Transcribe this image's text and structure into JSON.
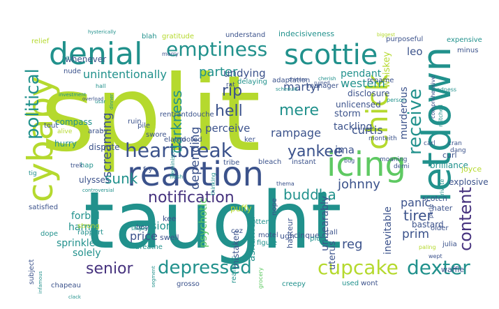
{
  "palette": {
    "lime": "#b5d92e",
    "green": "#5ec962",
    "teal": "#21918c",
    "cyan": "#2a9d8f",
    "blue": "#3b528b",
    "navy": "#46327e",
    "purple": "#440154"
  },
  "words": [
    {
      "text": "split",
      "color": "lime"
    },
    {
      "text": "taught",
      "color": "teal"
    },
    {
      "text": "reaction",
      "color": "blue"
    },
    {
      "text": "letdown",
      "color": "teal"
    },
    {
      "text": "denial",
      "color": "teal"
    },
    {
      "text": "scottie",
      "color": "teal"
    },
    {
      "text": "icing",
      "color": "green"
    },
    {
      "text": "cybaby",
      "color": "lime"
    },
    {
      "text": "emptiness",
      "color": "teal"
    },
    {
      "text": "chick",
      "color": "lime"
    },
    {
      "text": "receive",
      "color": "teal"
    },
    {
      "text": "content",
      "color": "navy"
    },
    {
      "text": "political",
      "color": "teal"
    },
    {
      "text": "heartbreak",
      "color": "blue"
    },
    {
      "text": "cupcake",
      "color": "lime"
    },
    {
      "text": "dexter",
      "color": "teal"
    },
    {
      "text": "depressed",
      "color": "teal"
    },
    {
      "text": "senior",
      "color": "navy"
    },
    {
      "text": "notification",
      "color": "navy"
    },
    {
      "text": "yankee",
      "color": "blue"
    },
    {
      "text": "hell",
      "color": "blue"
    },
    {
      "text": "mere",
      "color": "teal"
    },
    {
      "text": "rip",
      "color": "blue"
    },
    {
      "text": "parter",
      "color": "teal"
    },
    {
      "text": "undying",
      "color": "blue"
    },
    {
      "text": "darkness",
      "color": "teal"
    },
    {
      "text": "depending",
      "color": "blue"
    },
    {
      "text": "unintentionally",
      "color": "teal"
    },
    {
      "text": "screaming",
      "color": "blue"
    },
    {
      "text": "sunk",
      "color": "teal"
    },
    {
      "text": "buddha",
      "color": "teal"
    },
    {
      "text": "johnny",
      "color": "blue"
    },
    {
      "text": "tirer",
      "color": "blue"
    },
    {
      "text": "martyr",
      "color": "blue"
    },
    {
      "text": "leo",
      "color": "blue"
    },
    {
      "text": "western",
      "color": "teal"
    },
    {
      "text": "curtis",
      "color": "blue"
    },
    {
      "text": "storm",
      "color": "blue"
    },
    {
      "text": "rampage",
      "color": "blue"
    },
    {
      "text": "perceive",
      "color": "blue"
    },
    {
      "text": "ima",
      "color": "blue"
    },
    {
      "text": "murderous",
      "color": "blue"
    },
    {
      "text": "tackling",
      "color": "blue"
    },
    {
      "text": "pendant",
      "color": "teal"
    },
    {
      "text": "prim",
      "color": "blue"
    },
    {
      "text": "panic",
      "color": "blue"
    },
    {
      "text": "reg",
      "color": "blue"
    },
    {
      "text": "inevitable",
      "color": "blue"
    },
    {
      "text": "unbearably",
      "color": "blue"
    },
    {
      "text": "ashamed",
      "color": "teal"
    },
    {
      "text": "psychotic",
      "color": "green"
    },
    {
      "text": "tension",
      "color": "teal"
    },
    {
      "text": "price",
      "color": "blue"
    },
    {
      "text": "solely",
      "color": "teal"
    },
    {
      "text": "sprinkle",
      "color": "teal"
    },
    {
      "text": "harm",
      "color": "teal"
    },
    {
      "text": "forbid",
      "color": "teal"
    },
    {
      "text": "whenever",
      "color": "blue"
    },
    {
      "text": "nude",
      "color": "blue"
    },
    {
      "text": "whiskey",
      "color": "lime"
    },
    {
      "text": "disclosure",
      "color": "blue"
    },
    {
      "text": "unlicensed",
      "color": "blue"
    },
    {
      "text": "indecisiveness",
      "color": "teal"
    },
    {
      "text": "purposeful",
      "color": "blue"
    },
    {
      "text": "explosive",
      "color": "blue"
    },
    {
      "text": "brilliance",
      "color": "teal"
    },
    {
      "text": "curl",
      "color": "blue"
    },
    {
      "text": "joyce",
      "color": "lime"
    },
    {
      "text": "bastard",
      "color": "blue"
    },
    {
      "text": "scotch",
      "color": "blue"
    },
    {
      "text": "hater",
      "color": "blue"
    },
    {
      "text": "waffle",
      "color": "blue"
    },
    {
      "text": "ulysses",
      "color": "blue"
    },
    {
      "text": "compass",
      "color": "teal"
    },
    {
      "text": "hurry",
      "color": "teal"
    },
    {
      "text": "dispute",
      "color": "blue"
    },
    {
      "text": "puffy",
      "color": "lime"
    },
    {
      "text": "tribe",
      "color": "blue"
    },
    {
      "text": "bleach",
      "color": "blue"
    },
    {
      "text": "instant",
      "color": "blue"
    },
    {
      "text": "mistaken",
      "color": "blue"
    },
    {
      "text": "motel",
      "color": "blue"
    },
    {
      "text": "uterus",
      "color": "blue"
    },
    {
      "text": "realistic",
      "color": "teal"
    },
    {
      "text": "grosso",
      "color": "blue"
    },
    {
      "text": "creepy",
      "color": "teal"
    },
    {
      "text": "used",
      "color": "teal"
    },
    {
      "text": "wont",
      "color": "blue"
    },
    {
      "text": "subject",
      "color": "blue"
    },
    {
      "text": "chapeau",
      "color": "blue"
    },
    {
      "text": "rapport",
      "color": "teal"
    },
    {
      "text": "strong",
      "color": "lime"
    },
    {
      "text": "dope",
      "color": "teal"
    },
    {
      "text": "satisfied",
      "color": "blue"
    },
    {
      "text": "swore",
      "color": "blue"
    },
    {
      "text": "ruin",
      "color": "blue"
    },
    {
      "text": "elated",
      "color": "blue"
    },
    {
      "text": "rooted",
      "color": "blue"
    },
    {
      "text": "ugh",
      "color": "blue"
    },
    {
      "text": "hauteur",
      "color": "blue"
    },
    {
      "text": "cinque",
      "color": "blue"
    },
    {
      "text": "nope",
      "color": "blue"
    },
    {
      "text": "kee",
      "color": "blue"
    },
    {
      "text": "swell",
      "color": "blue"
    },
    {
      "text": "boy",
      "color": "blue"
    },
    {
      "text": "breathe",
      "color": "teal"
    },
    {
      "text": "coz",
      "color": "blue"
    },
    {
      "text": "gotten",
      "color": "teal"
    },
    {
      "text": "figure",
      "color": "teal"
    },
    {
      "text": "plug",
      "color": "teal"
    },
    {
      "text": "tall",
      "color": "blue"
    },
    {
      "text": "older",
      "color": "blue"
    },
    {
      "text": "julia",
      "color": "blue"
    },
    {
      "text": "relief",
      "color": "lime"
    },
    {
      "text": "blah",
      "color": "teal"
    },
    {
      "text": "gratitude",
      "color": "lime"
    },
    {
      "text": "understand",
      "color": "blue"
    },
    {
      "text": "expensive",
      "color": "teal"
    },
    {
      "text": "minus",
      "color": "blue"
    },
    {
      "text": "adaptation",
      "color": "blue"
    },
    {
      "text": "delaying",
      "color": "teal"
    },
    {
      "text": "rename",
      "color": "blue"
    },
    {
      "text": "manager",
      "color": "blue"
    },
    {
      "text": "rentrantdouche",
      "color": "blue"
    },
    {
      "text": "pile",
      "color": "blue"
    },
    {
      "text": "tout",
      "color": "blue"
    },
    {
      "text": "hap",
      "color": "teal"
    },
    {
      "text": "fry",
      "color": "blue"
    },
    {
      "text": "ker",
      "color": "blue"
    },
    {
      "text": "araby",
      "color": "blue"
    },
    {
      "text": "cop",
      "color": "lime"
    },
    {
      "text": "alive",
      "color": "lime"
    },
    {
      "text": "tig",
      "color": "teal"
    },
    {
      "text": "trek",
      "color": "blue"
    },
    {
      "text": "rat",
      "color": "blue"
    },
    {
      "text": "monteith",
      "color": "blue"
    },
    {
      "text": "moaning",
      "color": "blue"
    },
    {
      "text": "dang",
      "color": "blue"
    },
    {
      "text": "cran",
      "color": "blue"
    },
    {
      "text": "carl",
      "color": "blue"
    },
    {
      "text": "demi",
      "color": "blue"
    },
    {
      "text": "morry",
      "color": "blue"
    },
    {
      "text": "hysterically",
      "color": "teal"
    },
    {
      "text": "hit",
      "color": "teal"
    },
    {
      "text": "comprehensive",
      "color": "blue"
    },
    {
      "text": "mitchell",
      "color": "teal"
    },
    {
      "text": "person",
      "color": "teal"
    },
    {
      "text": "madness",
      "color": "teal"
    },
    {
      "text": "schedule",
      "color": "teal"
    },
    {
      "text": "biggest",
      "color": "lime"
    },
    {
      "text": "chinese",
      "color": "blue"
    },
    {
      "text": "cherish",
      "color": "teal"
    },
    {
      "text": "ruined",
      "color": "blue"
    },
    {
      "text": "hall",
      "color": "teal"
    },
    {
      "text": "overload",
      "color": "blue"
    },
    {
      "text": "usar",
      "color": "teal"
    },
    {
      "text": "dinner",
      "color": "teal"
    },
    {
      "text": "infamous",
      "color": "teal"
    },
    {
      "text": "clack",
      "color": "teal"
    },
    {
      "text": "private",
      "color": "teal"
    },
    {
      "text": "perle",
      "color": "blue"
    },
    {
      "text": "paling",
      "color": "lime"
    },
    {
      "text": "grocery",
      "color": "green"
    },
    {
      "text": "wept",
      "color": "blue"
    },
    {
      "text": "investment",
      "color": "teal"
    },
    {
      "text": "segment",
      "color": "teal"
    },
    {
      "text": "reminisce",
      "color": "teal"
    },
    {
      "text": "flesh",
      "color": "teal"
    },
    {
      "text": "thinking",
      "color": "teal"
    },
    {
      "text": "single",
      "color": "teal"
    },
    {
      "text": "controversial",
      "color": "teal"
    },
    {
      "text": "bug",
      "color": "blue"
    },
    {
      "text": "thema",
      "color": "blue"
    }
  ]
}
